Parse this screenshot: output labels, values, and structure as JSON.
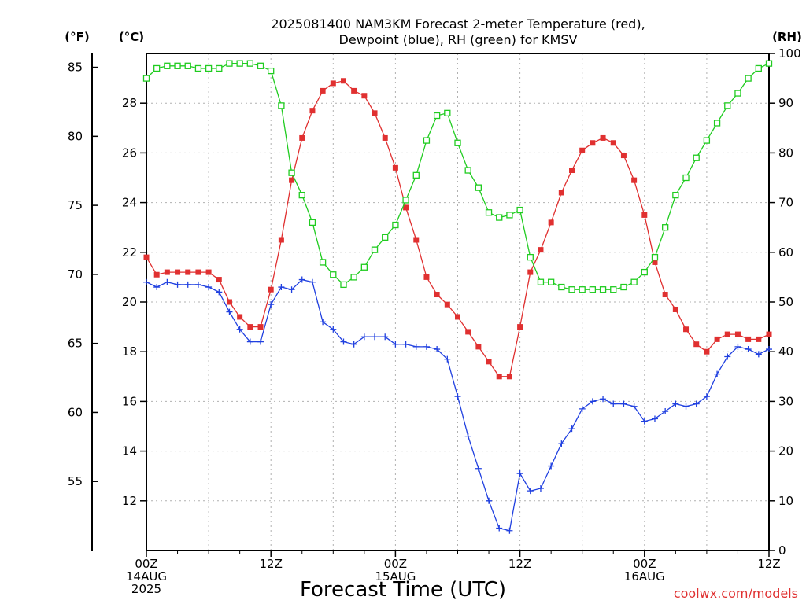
{
  "chart_data": {
    "type": "line",
    "title": "2025081400 NAM3KM Forecast 2-meter Temperature (red),",
    "subtitle": "Dewpoint (blue), RH (green) for KMSV",
    "xlabel": "Forecast Time (UTC)",
    "credit": "coolwx.com/models",
    "units": {
      "fahrenheit": "(°F)",
      "celsius": "(°C)",
      "rh": "(RH)"
    },
    "x_ticks": [
      {
        "hour": 0,
        "lines": [
          "00Z",
          "14AUG",
          "2025"
        ]
      },
      {
        "hour": 12,
        "lines": [
          "12Z"
        ]
      },
      {
        "hour": 24,
        "lines": [
          "00Z",
          "15AUG"
        ]
      },
      {
        "hour": 36,
        "lines": [
          "12Z"
        ]
      },
      {
        "hour": 48,
        "lines": [
          "00Z",
          "16AUG"
        ]
      },
      {
        "hour": 60,
        "lines": [
          "12Z"
        ]
      }
    ],
    "xlim": [
      0,
      60
    ],
    "ylim_celsius": [
      10,
      30
    ],
    "ylim_rh": [
      0,
      100
    ],
    "celsius_ticks": [
      12,
      14,
      16,
      18,
      20,
      22,
      24,
      26,
      28
    ],
    "fahrenheit_ticks": [
      55,
      60,
      65,
      70,
      75,
      80,
      85
    ],
    "rh_ticks": [
      0,
      10,
      20,
      30,
      40,
      50,
      60,
      70,
      80,
      90,
      100
    ],
    "grid": true,
    "x": [
      0,
      1,
      2,
      3,
      4,
      5,
      6,
      7,
      8,
      9,
      10,
      11,
      12,
      13,
      14,
      15,
      16,
      17,
      18,
      19,
      20,
      21,
      22,
      23,
      24,
      25,
      26,
      27,
      28,
      29,
      30,
      31,
      32,
      33,
      34,
      35,
      36,
      37,
      38,
      39,
      40,
      41,
      42,
      43,
      44,
      45,
      46,
      47,
      48,
      49,
      50,
      51,
      52,
      53,
      54,
      55,
      56,
      57,
      58,
      59,
      60
    ],
    "series": [
      {
        "name": "Temperature",
        "unit": "celsius",
        "color": "#e03030",
        "marker": "filled-square",
        "values": [
          21.8,
          21.1,
          21.2,
          21.2,
          21.2,
          21.2,
          21.2,
          20.9,
          20.0,
          19.4,
          19.0,
          19.0,
          20.5,
          22.5,
          24.9,
          26.6,
          27.7,
          28.5,
          28.8,
          28.9,
          28.5,
          28.3,
          27.6,
          26.6,
          25.4,
          23.8,
          22.5,
          21.0,
          20.3,
          19.9,
          19.4,
          18.8,
          18.2,
          17.6,
          17.0,
          17.0,
          19.0,
          21.2,
          22.1,
          23.2,
          24.4,
          25.3,
          26.1,
          26.4,
          26.6,
          26.4,
          25.9,
          24.9,
          23.5,
          21.6,
          20.3,
          19.7,
          18.9,
          18.3,
          18.0,
          18.5,
          18.7,
          18.7,
          18.5,
          18.5,
          18.7
        ]
      },
      {
        "name": "Dewpoint",
        "unit": "celsius",
        "color": "#2040e0",
        "marker": "plus",
        "values": [
          20.8,
          20.6,
          20.8,
          20.7,
          20.7,
          20.7,
          20.6,
          20.4,
          19.6,
          18.9,
          18.4,
          18.4,
          19.9,
          20.6,
          20.5,
          20.9,
          20.8,
          19.2,
          18.9,
          18.4,
          18.3,
          18.6,
          18.6,
          18.6,
          18.3,
          18.3,
          18.2,
          18.2,
          18.1,
          17.7,
          16.2,
          14.6,
          13.3,
          12.0,
          10.9,
          10.8,
          13.1,
          12.4,
          12.5,
          13.4,
          14.3,
          14.9,
          15.7,
          16.0,
          16.1,
          15.9,
          15.9,
          15.8,
          15.2,
          15.3,
          15.6,
          15.9,
          15.8,
          15.9,
          16.2,
          17.1,
          17.8,
          18.2,
          18.1,
          17.9,
          18.1
        ]
      },
      {
        "name": "RH",
        "unit": "rh",
        "color": "#20cc20",
        "marker": "open-square",
        "values": [
          95,
          97,
          97.5,
          97.5,
          97.5,
          97,
          97,
          97,
          98,
          98,
          98,
          97.5,
          96.5,
          89.5,
          76,
          71.5,
          66,
          58,
          55.5,
          53.5,
          55,
          57,
          60.5,
          63,
          65.5,
          70.5,
          75.5,
          82.5,
          87.5,
          88,
          82,
          76.5,
          73,
          68,
          67,
          67.5,
          68.5,
          59,
          54,
          54,
          53,
          52.5,
          52.5,
          52.5,
          52.5,
          52.5,
          53,
          54,
          56,
          59,
          65,
          71.5,
          75,
          79,
          82.5,
          86,
          89.5,
          92,
          95,
          97,
          98
        ]
      }
    ]
  }
}
